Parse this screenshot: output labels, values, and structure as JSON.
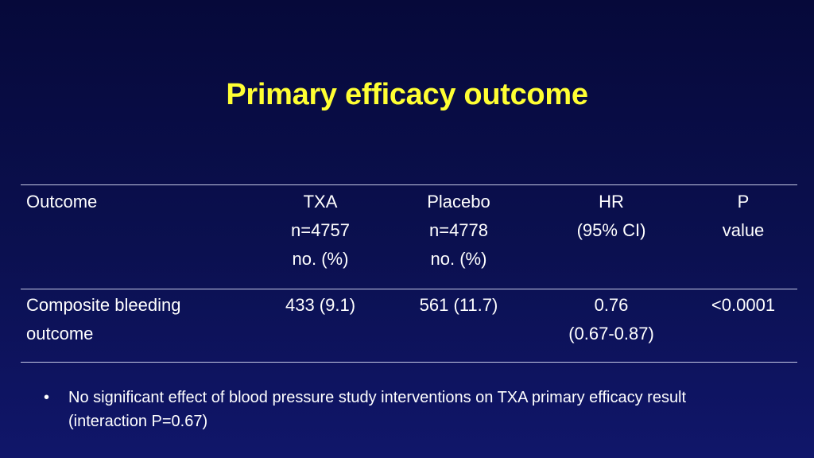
{
  "slide": {
    "title": "Primary efficacy outcome"
  },
  "table": {
    "headers": {
      "outcome": [
        "Outcome"
      ],
      "txa": [
        "TXA",
        "n=4757",
        "no. (%)"
      ],
      "placebo": [
        "Placebo",
        "n=4778",
        "no. (%)"
      ],
      "hr": [
        "HR",
        "(95% CI)"
      ],
      "p": [
        "P",
        "value"
      ]
    },
    "rows": [
      {
        "outcome": [
          "Composite bleeding",
          "outcome"
        ],
        "txa": "433 (9.1)",
        "placebo": "561 (11.7)",
        "hr": [
          "0.76",
          "(0.67-0.87)"
        ],
        "p": "<0.0001"
      }
    ]
  },
  "bullets": [
    {
      "marker": "•",
      "text": "No significant effect of blood pressure study interventions on TXA primary efficacy result (interaction P=0.67)"
    }
  ],
  "colors": {
    "background_top": "#06093a",
    "background_bottom": "#10166a",
    "title": "#ffff33",
    "text": "#ffffff",
    "rule": "#c7cbe6"
  }
}
